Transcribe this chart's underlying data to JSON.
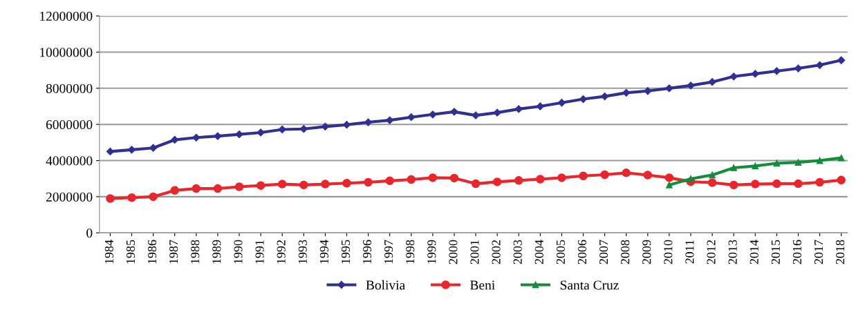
{
  "chart_data": {
    "type": "line",
    "categories": [
      "1984",
      "1985",
      "1986",
      "1987",
      "1988",
      "1989",
      "1990",
      "1991",
      "1992",
      "1993",
      "1994",
      "1995",
      "1996",
      "1997",
      "1998",
      "1999",
      "2000",
      "2001",
      "2002",
      "2003",
      "2004",
      "2005",
      "2006",
      "2007",
      "2008",
      "2009",
      "2010",
      "2011",
      "2012",
      "2013",
      "2014",
      "2015",
      "2016",
      "2017",
      "2018"
    ],
    "series": [
      {
        "name": "Bolivia",
        "color": "#2e3192",
        "marker": "diamond",
        "values": [
          4500000,
          4600000,
          4700000,
          5150000,
          5270000,
          5350000,
          5450000,
          5550000,
          5720000,
          5750000,
          5880000,
          5980000,
          6120000,
          6230000,
          6400000,
          6550000,
          6700000,
          6500000,
          6650000,
          6850000,
          7000000,
          7200000,
          7400000,
          7550000,
          7750000,
          7850000,
          8000000,
          8150000,
          8350000,
          8650000,
          8800000,
          8950000,
          9100000,
          9280000,
          9550000
        ]
      },
      {
        "name": "Beni",
        "color": "#e8262c",
        "marker": "circle",
        "values": [
          1900000,
          1950000,
          2000000,
          2350000,
          2450000,
          2450000,
          2550000,
          2620000,
          2700000,
          2650000,
          2700000,
          2750000,
          2800000,
          2880000,
          2950000,
          3050000,
          3030000,
          2720000,
          2820000,
          2900000,
          2970000,
          3050000,
          3150000,
          3220000,
          3320000,
          3200000,
          3050000,
          2830000,
          2780000,
          2650000,
          2700000,
          2720000,
          2720000,
          2800000,
          2920000
        ]
      },
      {
        "name": "Santa Cruz",
        "color": "#138c3c",
        "marker": "triangle",
        "values": [
          null,
          null,
          null,
          null,
          null,
          null,
          null,
          null,
          null,
          null,
          null,
          null,
          null,
          null,
          null,
          null,
          null,
          null,
          null,
          null,
          null,
          null,
          null,
          null,
          null,
          null,
          2650000,
          2990000,
          3200000,
          3600000,
          3700000,
          3850000,
          3900000,
          4000000,
          4150000
        ]
      }
    ],
    "ylim": [
      0,
      12000000
    ],
    "yticks": [
      0,
      2000000,
      4000000,
      6000000,
      8000000,
      10000000,
      12000000
    ],
    "grid": "y",
    "legend": "bottom",
    "line_style": "solid"
  }
}
